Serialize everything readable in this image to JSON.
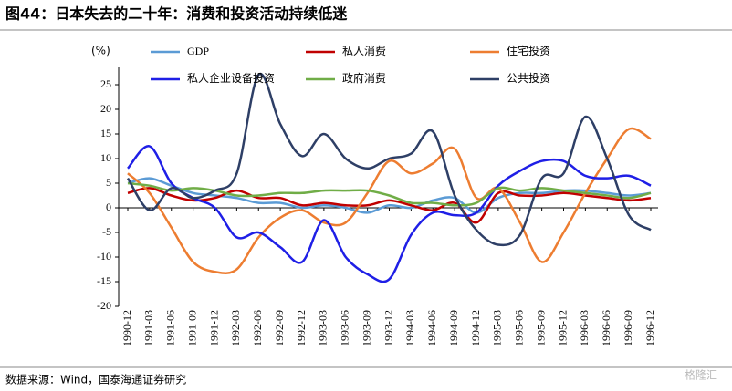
{
  "chart_data": {
    "type": "line",
    "title": "图44：日本失去的二十年：消费和投资活动持续低迷",
    "y_unit": "(%)",
    "source": "数据来源：Wind，国泰海通证券研究",
    "watermark": "格隆汇",
    "categories": [
      "1990-12",
      "1991-03",
      "1991-06",
      "1991-09",
      "1991-12",
      "1992-03",
      "1992-06",
      "1992-09",
      "1992-12",
      "1993-03",
      "1993-06",
      "1993-09",
      "1993-12",
      "1994-03",
      "1994-06",
      "1994-09",
      "1994-12",
      "1995-03",
      "1995-06",
      "1995-09",
      "1995-12",
      "1996-03",
      "1996-06",
      "1996-09",
      "1996-12"
    ],
    "series": [
      {
        "name": "GDP",
        "color": "#5b9bd5",
        "values": [
          5,
          6,
          4.5,
          3,
          2.5,
          2,
          1,
          1,
          0,
          0.5,
          0,
          -1,
          0.5,
          0,
          1.5,
          2,
          -1,
          2,
          3,
          3,
          3.5,
          3.5,
          3,
          2.5,
          3
        ]
      },
      {
        "name": "私人消费",
        "color": "#c00000",
        "values": [
          3,
          4,
          2.5,
          1.5,
          2,
          3.5,
          2,
          2,
          0.5,
          1,
          0.5,
          0.5,
          1.5,
          0.5,
          -0.5,
          1,
          -3,
          3,
          2.5,
          2.5,
          3,
          2.5,
          2,
          1.5,
          2
        ]
      },
      {
        "name": "住宅投资",
        "color": "#ed7d31",
        "values": [
          7,
          3,
          -4,
          -11,
          -13,
          -12.5,
          -6,
          -2,
          -0.5,
          -3,
          -3,
          3,
          9.5,
          7,
          9,
          12,
          2,
          4,
          -3,
          -11,
          -5,
          3,
          10,
          16,
          14
        ]
      },
      {
        "name": "私人企业设备投资",
        "color": "#1f1fe6",
        "values": [
          8,
          12.5,
          5,
          2,
          0,
          -6,
          -5,
          -8,
          -11,
          -2.5,
          -10,
          -13.5,
          -14.5,
          -5.5,
          -1,
          -1.5,
          -1,
          4.5,
          7.5,
          9.5,
          9.5,
          6.5,
          6,
          6.5,
          4.5
        ]
      },
      {
        "name": "政府消费",
        "color": "#70ad47",
        "values": [
          5,
          4.5,
          3.5,
          4,
          3.5,
          2.5,
          2.5,
          3,
          3,
          3.5,
          3.5,
          3.5,
          2.5,
          1,
          1,
          0.5,
          1,
          4,
          3.5,
          4,
          3.5,
          3,
          2.5,
          2,
          3
        ]
      },
      {
        "name": "公共投资",
        "color": "#2e3f66",
        "values": [
          6,
          -0.5,
          4,
          2,
          3.5,
          7,
          27,
          17,
          10.5,
          15,
          10,
          8,
          10,
          11,
          15.5,
          2.5,
          -4.5,
          -7.5,
          -5.5,
          6,
          7,
          18.5,
          10,
          -1.5,
          -4.5
        ]
      }
    ],
    "ylim": [
      -20,
      25
    ],
    "yticks": [
      -20,
      -15,
      -10,
      -5,
      0,
      5,
      10,
      15,
      20,
      25
    ]
  }
}
